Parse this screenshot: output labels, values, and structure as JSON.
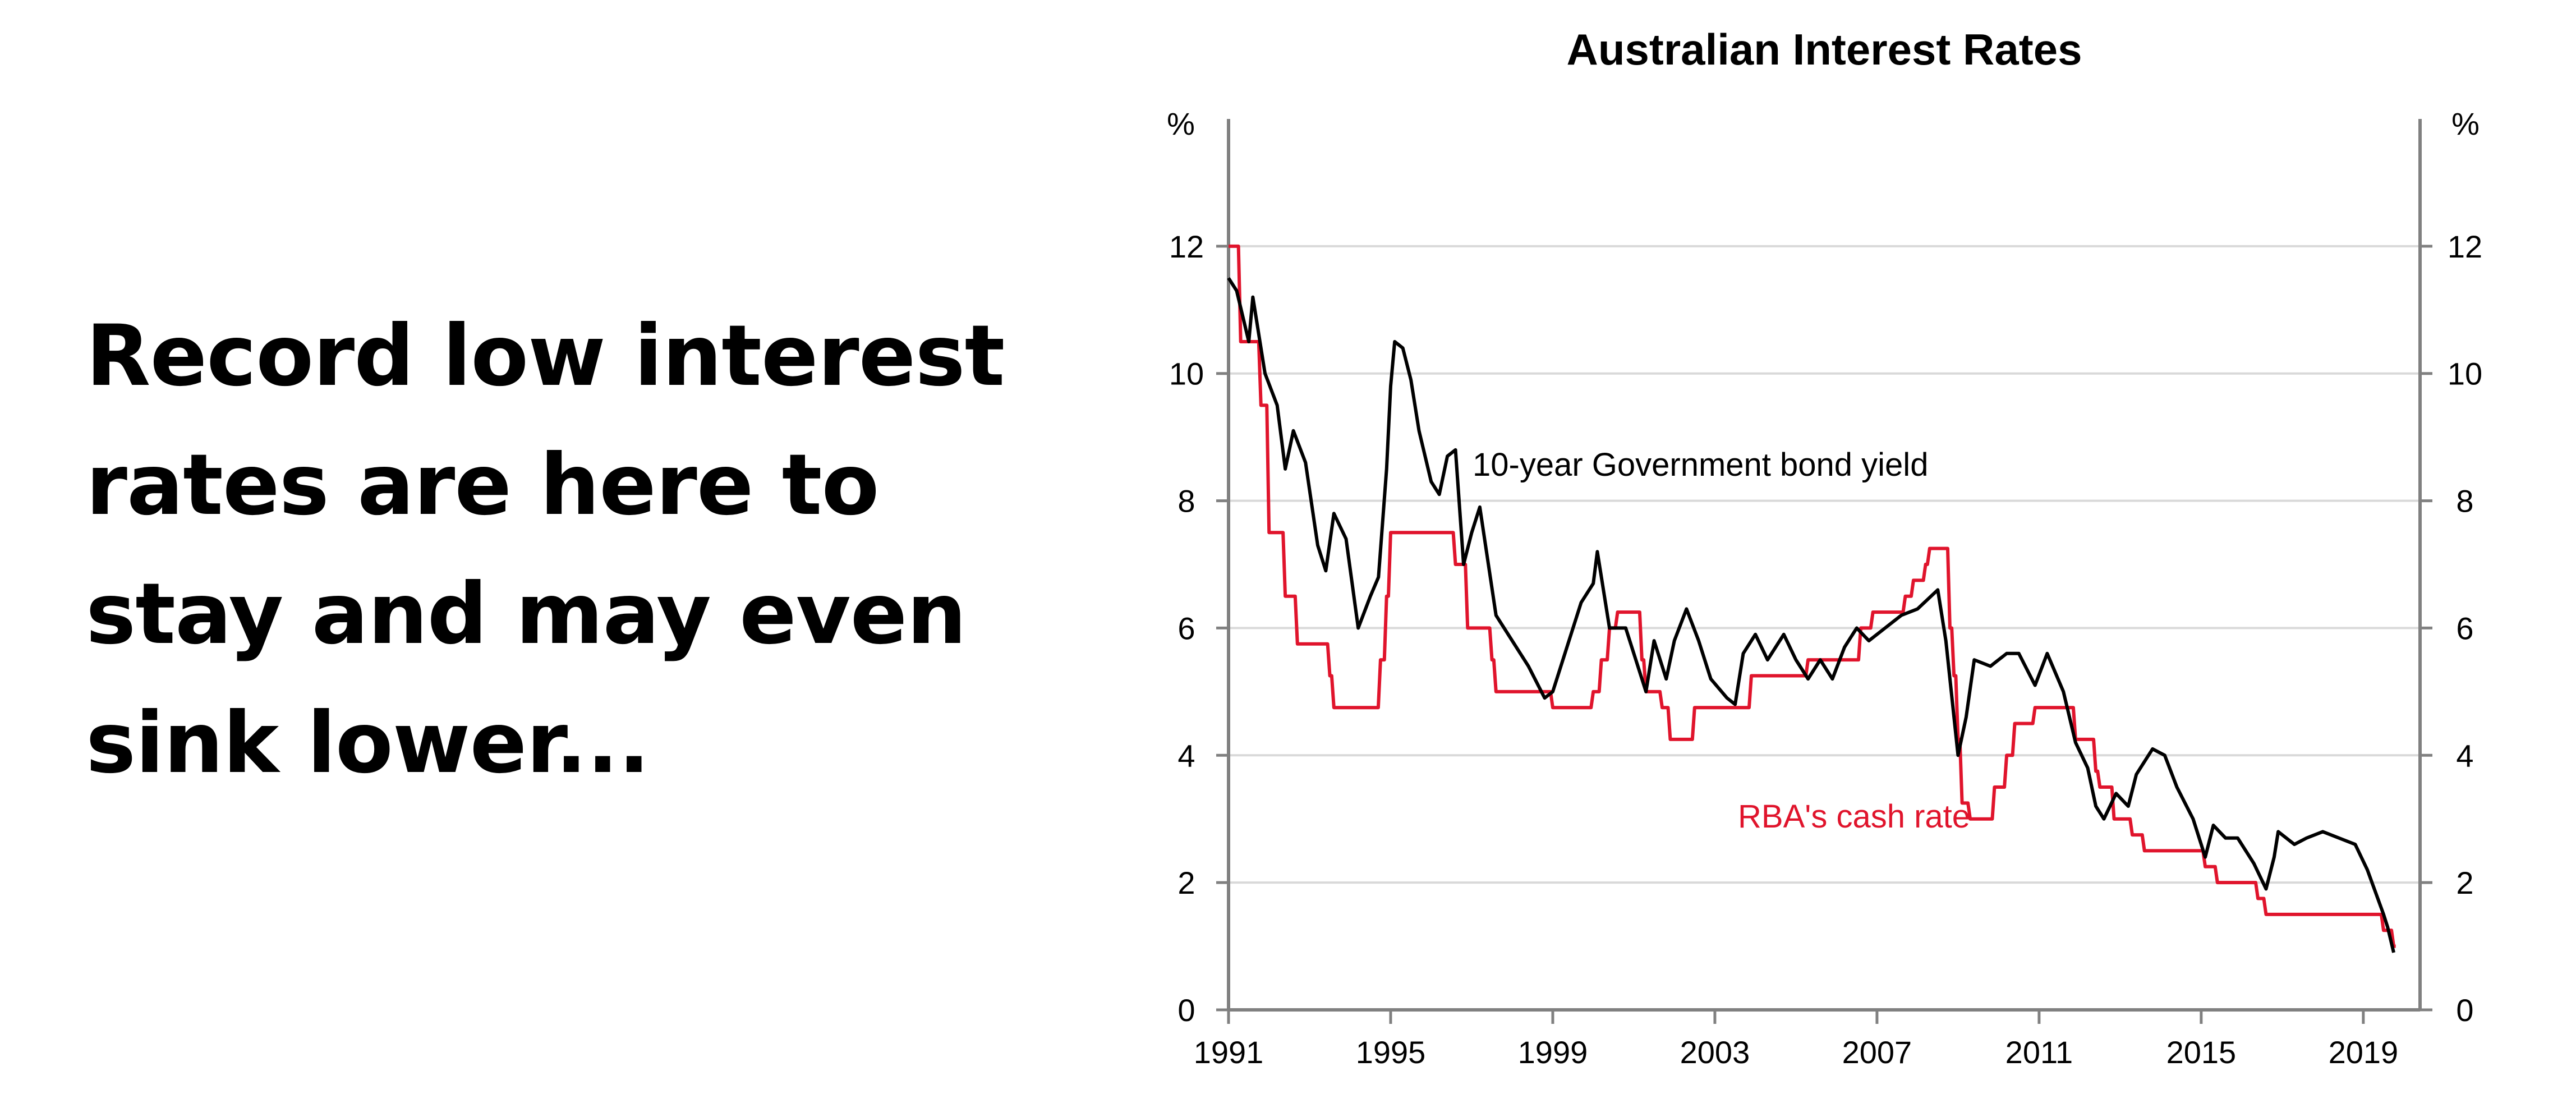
{
  "headline": "Record low interest rates are here to stay and may even sink lower...",
  "chart_data": {
    "type": "line",
    "title": "Australian Interest Rates",
    "ylabel_left": "%",
    "ylabel_right": "%",
    "xlim": [
      1991,
      2020.4
    ],
    "ylim": [
      0,
      14
    ],
    "yticks": [
      0,
      2,
      4,
      6,
      8,
      10,
      12
    ],
    "xticks": [
      1991,
      1995,
      1999,
      2003,
      2007,
      2011,
      2015,
      2019
    ],
    "grid": true,
    "colors": {
      "bond": "#000000",
      "cash": "#e0142c",
      "grid": "#d9d9d9",
      "axis": "#808080"
    },
    "annotations": {
      "bond": "10-year Government bond yield",
      "cash": "RBA's cash rate"
    },
    "series": [
      {
        "name": "10-year Government bond yield",
        "key": "bond",
        "x": [
          1991.0,
          1991.2,
          1991.5,
          1991.6,
          1991.9,
          1992.2,
          1992.4,
          1992.6,
          1992.9,
          1993.2,
          1993.4,
          1993.6,
          1993.9,
          1994.2,
          1994.5,
          1994.7,
          1994.9,
          1995.0,
          1995.1,
          1995.3,
          1995.5,
          1995.7,
          1996.0,
          1996.2,
          1996.4,
          1996.6,
          1996.8,
          1997.0,
          1997.2,
          1997.6,
          1998.0,
          1998.4,
          1998.8,
          1999.0,
          1999.4,
          1999.7,
          2000.0,
          2000.1,
          2000.4,
          2000.8,
          2001.1,
          2001.3,
          2001.5,
          2001.8,
          2002.0,
          2002.3,
          2002.6,
          2002.9,
          2003.3,
          2003.5,
          2003.7,
          2004.0,
          2004.3,
          2004.7,
          2005.0,
          2005.3,
          2005.6,
          2005.9,
          2006.2,
          2006.5,
          2006.8,
          2007.2,
          2007.6,
          2008.0,
          2008.5,
          2008.7,
          2009.0,
          2009.2,
          2009.4,
          2009.8,
          2010.2,
          2010.5,
          2010.9,
          2011.2,
          2011.6,
          2011.9,
          2012.2,
          2012.4,
          2012.6,
          2012.9,
          2013.2,
          2013.4,
          2013.8,
          2014.1,
          2014.4,
          2014.8,
          2015.1,
          2015.3,
          2015.6,
          2015.9,
          2016.3,
          2016.6,
          2016.8,
          2016.9,
          2017.3,
          2017.6,
          2018.0,
          2018.4,
          2018.8,
          2019.1,
          2019.5,
          2019.6,
          2019.75
        ],
        "values": [
          11.5,
          11.3,
          10.5,
          11.2,
          10.0,
          9.5,
          8.5,
          9.1,
          8.6,
          7.3,
          6.9,
          7.8,
          7.4,
          6.0,
          6.5,
          6.8,
          8.5,
          9.8,
          10.5,
          10.4,
          9.9,
          9.1,
          8.3,
          8.1,
          8.7,
          8.8,
          7.0,
          7.5,
          7.9,
          6.2,
          5.8,
          5.4,
          4.9,
          5.0,
          5.8,
          6.4,
          6.7,
          7.2,
          6.0,
          6.0,
          5.4,
          5.0,
          5.8,
          5.2,
          5.8,
          6.3,
          5.8,
          5.2,
          4.9,
          4.8,
          5.6,
          5.9,
          5.5,
          5.9,
          5.5,
          5.2,
          5.5,
          5.2,
          5.7,
          6.0,
          5.8,
          6.0,
          6.2,
          6.3,
          6.6,
          5.8,
          4.0,
          4.6,
          5.5,
          5.4,
          5.6,
          5.6,
          5.1,
          5.6,
          5.0,
          4.2,
          3.8,
          3.2,
          3.0,
          3.4,
          3.2,
          3.7,
          4.1,
          4.0,
          3.5,
          3.0,
          2.4,
          2.9,
          2.7,
          2.7,
          2.3,
          1.9,
          2.4,
          2.8,
          2.6,
          2.7,
          2.8,
          2.7,
          2.6,
          2.2,
          1.5,
          1.3,
          0.9
        ]
      },
      {
        "name": "RBA's cash rate",
        "key": "cash",
        "step": true,
        "x": [
          1991.0,
          1991.3,
          1991.8,
          1992.0,
          1992.4,
          1992.7,
          1993.5,
          1993.6,
          1994.75,
          1994.9,
          1995.0,
          1996.6,
          1996.9,
          1997.5,
          1997.6,
          1999.0,
          2000.0,
          2000.2,
          2000.4,
          2000.6,
          2001.2,
          2001.3,
          2001.7,
          2001.9,
          2002.5,
          2003.9,
          2005.3,
          2006.6,
          2006.9,
          2007.7,
          2007.9,
          2008.2,
          2008.3,
          2008.8,
          2008.9,
          2009.0,
          2009.1,
          2009.3,
          2009.9,
          2010.2,
          2010.4,
          2010.9,
          2011.9,
          2012.4,
          2012.5,
          2012.85,
          2013.3,
          2013.6,
          2015.1,
          2015.4,
          2016.4,
          2016.6,
          2019.5,
          2019.75
        ],
        "values": [
          12.0,
          10.5,
          9.5,
          7.5,
          6.5,
          5.75,
          5.25,
          4.75,
          5.5,
          6.5,
          7.5,
          7.0,
          6.0,
          5.5,
          5.0,
          4.75,
          5.0,
          5.5,
          6.0,
          6.25,
          5.5,
          5.0,
          4.75,
          4.25,
          4.75,
          5.25,
          5.5,
          6.0,
          6.25,
          6.5,
          6.75,
          7.0,
          7.25,
          6.0,
          5.25,
          4.25,
          3.25,
          3.0,
          3.5,
          4.0,
          4.5,
          4.75,
          4.25,
          3.75,
          3.5,
          3.0,
          2.75,
          2.5,
          2.25,
          2.0,
          1.75,
          1.5,
          1.25,
          1.0
        ]
      }
    ]
  }
}
